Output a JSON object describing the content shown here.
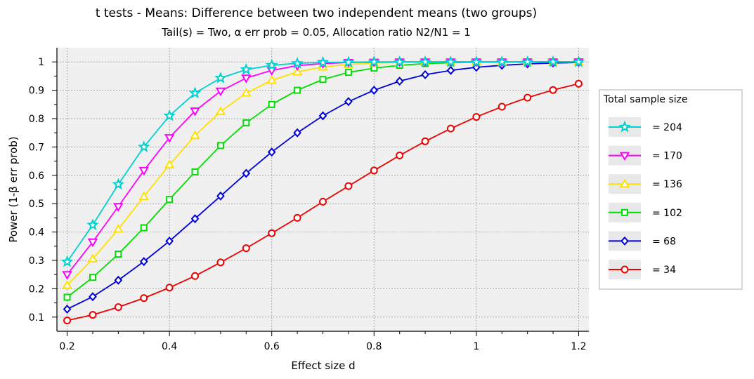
{
  "chart_data": {
    "type": "line",
    "title": "t tests - Means: Difference between two independent means (two groups)",
    "subtitle": "Tail(s) = Two, α err prob = 0.05, Allocation ratio N2/N1 = 1",
    "xlabel": "Effect size d",
    "ylabel": "Power (1-β err prob)",
    "xlim": [
      0.18,
      1.22
    ],
    "ylim": [
      0.05,
      1.05
    ],
    "x_ticks": [
      0.2,
      0.4,
      0.6,
      0.8,
      1,
      1.2
    ],
    "x_tick_labels": [
      "0.2",
      "0.4",
      "0.6",
      "0.8",
      "1",
      "1.2"
    ],
    "y_ticks": [
      0.1,
      0.2,
      0.3,
      0.4,
      0.5,
      0.6,
      0.7,
      0.8,
      0.9,
      1
    ],
    "y_tick_labels": [
      "0.1",
      "0.2",
      "0.3",
      "0.4",
      "0.5",
      "0.6",
      "0.7",
      "0.8",
      "0.9",
      "1"
    ],
    "grid": true,
    "legend": {
      "title": "Total sample size",
      "position": "right"
    },
    "x": [
      0.2,
      0.25,
      0.3,
      0.35,
      0.4,
      0.45,
      0.5,
      0.55,
      0.6,
      0.65,
      0.7,
      0.75,
      0.8,
      0.85,
      0.9,
      0.95,
      1.0,
      1.05,
      1.1,
      1.15,
      1.2
    ],
    "series": [
      {
        "name": "= 204",
        "color": "#00d0d0",
        "marker": "star",
        "values": [
          0.295,
          0.425,
          0.568,
          0.7,
          0.81,
          0.89,
          0.943,
          0.973,
          0.988,
          0.995,
          0.998,
          0.999,
          1.0,
          1.0,
          1.0,
          1.0,
          1.0,
          1.0,
          1.0,
          1.0,
          1.0
        ]
      },
      {
        "name": "= 170",
        "color": "#ff00ff",
        "marker": "triangle-down",
        "values": [
          0.25,
          0.365,
          0.49,
          0.617,
          0.733,
          0.827,
          0.897,
          0.943,
          0.97,
          0.987,
          0.994,
          0.998,
          0.999,
          1.0,
          1.0,
          1.0,
          1.0,
          1.0,
          1.0,
          1.0,
          1.0
        ]
      },
      {
        "name": "= 136",
        "color": "#ffe000",
        "marker": "triangle-up",
        "values": [
          0.212,
          0.305,
          0.41,
          0.525,
          0.637,
          0.74,
          0.825,
          0.89,
          0.935,
          0.965,
          0.982,
          0.991,
          0.996,
          0.998,
          0.999,
          1.0,
          1.0,
          1.0,
          1.0,
          1.0,
          1.0
        ]
      },
      {
        "name": "= 102",
        "color": "#00dd00",
        "marker": "square",
        "values": [
          0.17,
          0.24,
          0.322,
          0.415,
          0.515,
          0.612,
          0.705,
          0.785,
          0.85,
          0.9,
          0.938,
          0.963,
          0.978,
          0.988,
          0.994,
          0.997,
          0.999,
          0.999,
          1.0,
          1.0,
          1.0
        ]
      },
      {
        "name": "= 68",
        "color": "#0000dd",
        "marker": "diamond",
        "values": [
          0.128,
          0.172,
          0.23,
          0.296,
          0.368,
          0.447,
          0.527,
          0.607,
          0.682,
          0.75,
          0.81,
          0.86,
          0.9,
          0.932,
          0.955,
          0.97,
          0.981,
          0.988,
          0.993,
          0.996,
          0.998
        ]
      },
      {
        "name": "= 34",
        "color": "#ee0000",
        "marker": "circle",
        "values": [
          0.088,
          0.108,
          0.135,
          0.167,
          0.204,
          0.245,
          0.293,
          0.343,
          0.396,
          0.45,
          0.507,
          0.562,
          0.617,
          0.67,
          0.72,
          0.765,
          0.806,
          0.842,
          0.874,
          0.901,
          0.923
        ]
      }
    ]
  }
}
